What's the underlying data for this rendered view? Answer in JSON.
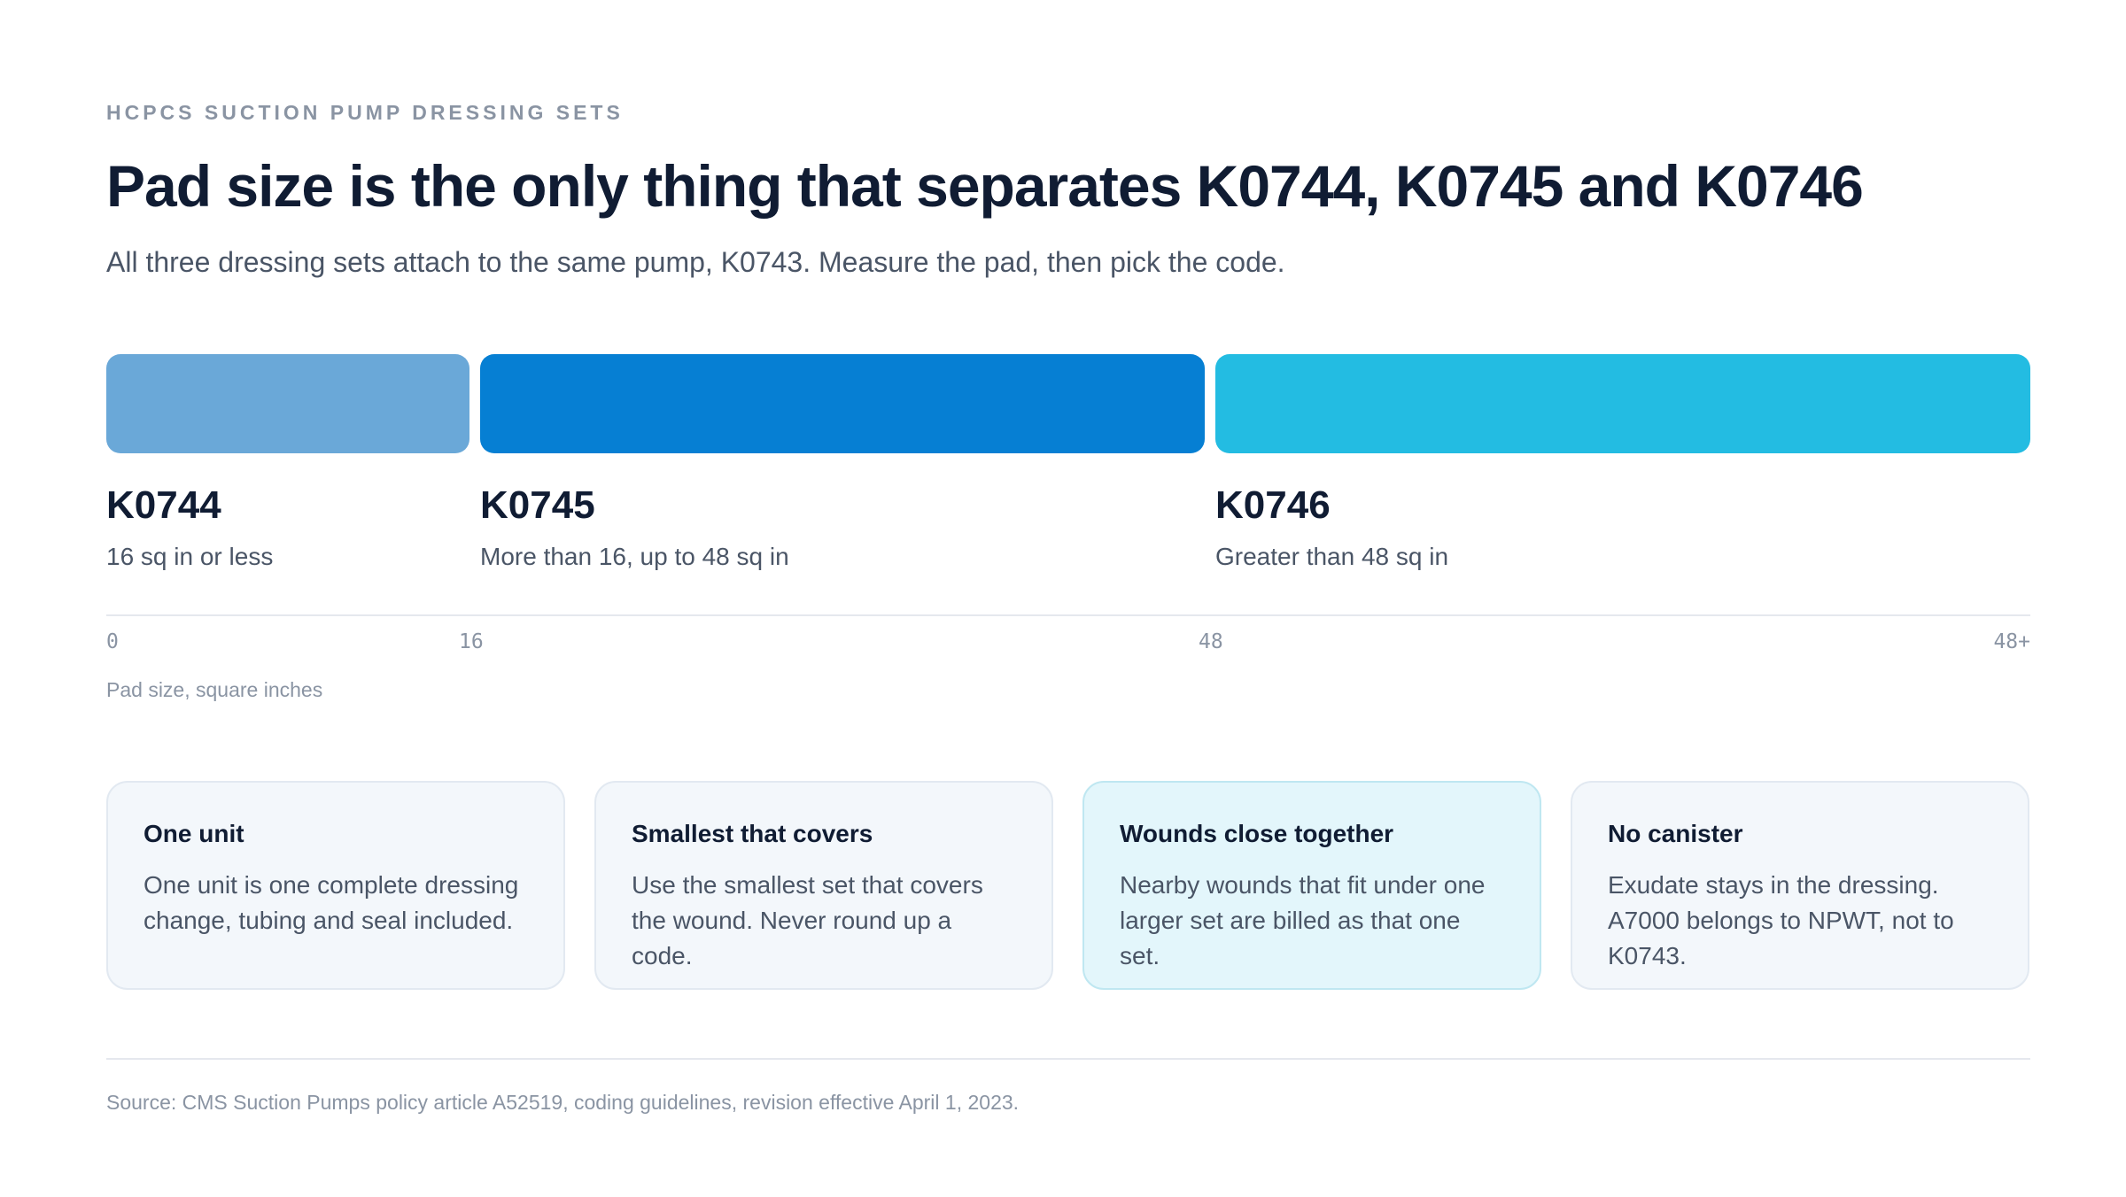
{
  "header": {
    "eyebrow": "HCPCS SUCTION PUMP DRESSING SETS",
    "title": "Pad size is the only thing that separates K0744, K0745 and K0746",
    "subtitle": "All three dressing sets attach to the same pump, K0743. Measure the pad, then pick the code."
  },
  "chart_data": {
    "type": "bar",
    "segments": [
      {
        "code": "K0744",
        "range_label": "16 sq in or less",
        "from": 0,
        "to": 16,
        "color": "#6aa8d8"
      },
      {
        "code": "K0745",
        "range_label": "More than 16, up to 48 sq in",
        "from": 16,
        "to": 48,
        "color": "#067fd3"
      },
      {
        "code": "K0746",
        "range_label": "Greater than 48 sq in",
        "from": 48,
        "to": "48+",
        "color": "#23bce2"
      }
    ],
    "axis": {
      "ticks": [
        "0",
        "16",
        "48",
        "48+"
      ],
      "label": "Pad size, square inches"
    }
  },
  "cards": [
    {
      "title": "One unit",
      "text": "One unit is one complete dressing change, tubing and seal included.",
      "highlight": false
    },
    {
      "title": "Smallest that covers",
      "text": "Use the smallest set that covers the wound. Never round up a code.",
      "highlight": false
    },
    {
      "title": "Wounds close together",
      "text": "Nearby wounds that fit under one larger set are billed as that one set.",
      "highlight": true
    },
    {
      "title": "No canister",
      "text": "Exudate stays in the dressing. A7000 belongs to NPWT, not to K0743.",
      "highlight": false
    }
  ],
  "footer": {
    "source": "Source: CMS Suction Pumps policy article A52519, coding guidelines, revision effective April 1, 2023."
  }
}
